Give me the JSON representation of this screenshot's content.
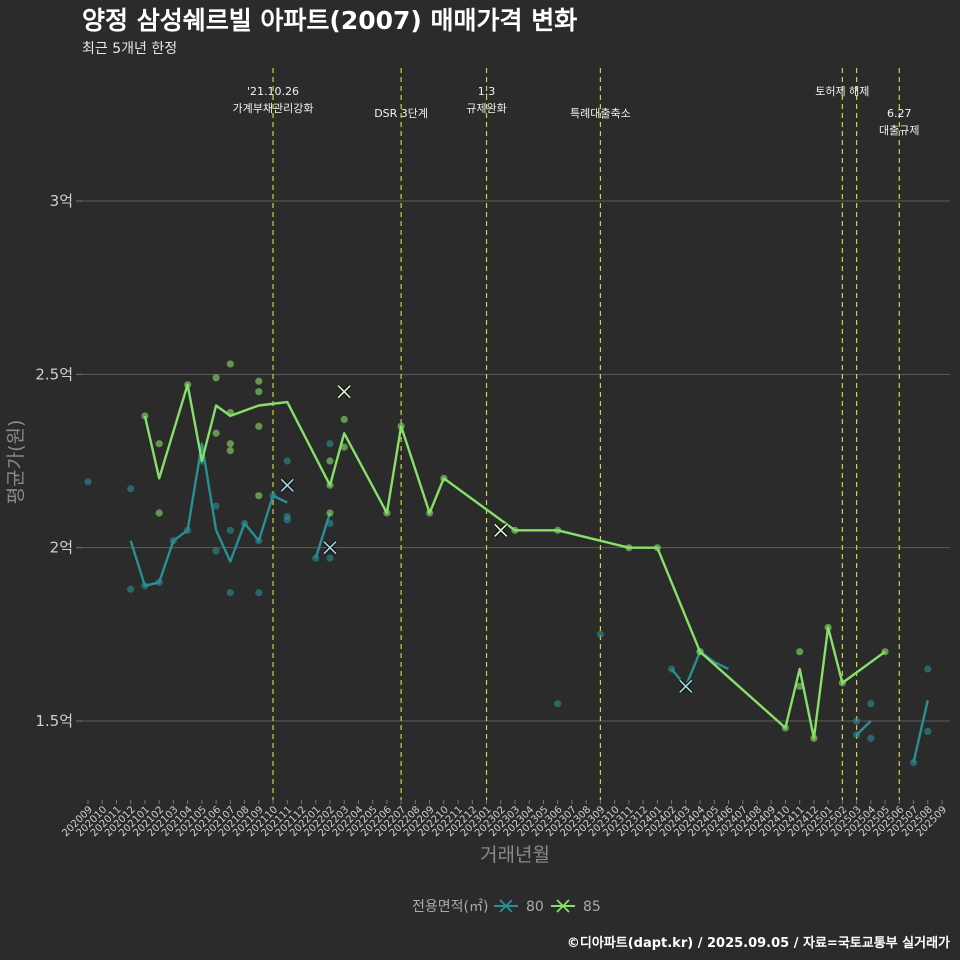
{
  "chart_data": {
    "type": "line",
    "title": "양정 삼성쉐르빌 아파트(2007) 매매가격 변화",
    "subtitle": "최근 5개년 한정",
    "xlabel": "거래년월",
    "ylabel": "평균가(원)",
    "caption": "©디아파트(dapt.kr) / 2025.09.05 / 자료=국토교통부 실거래가",
    "ylim": [
      1.3,
      3.45
    ],
    "yticks": [
      {
        "value": 1.5,
        "label": "1.5억"
      },
      {
        "value": 2.0,
        "label": "2억"
      },
      {
        "value": 2.5,
        "label": "2.5억"
      },
      {
        "value": 3.0,
        "label": "3억"
      }
    ],
    "grid": true,
    "legend_position": "bottom",
    "legend_title": "전용면적(㎡)",
    "categories": [
      "202009",
      "202010",
      "202011",
      "202012",
      "202101",
      "202102",
      "202103",
      "202104",
      "202105",
      "202106",
      "202107",
      "202108",
      "202109",
      "202110",
      "202111",
      "202112",
      "202201",
      "202202",
      "202203",
      "202204",
      "202205",
      "202206",
      "202207",
      "202208",
      "202209",
      "202210",
      "202211",
      "202212",
      "202301",
      "202302",
      "202303",
      "202304",
      "202305",
      "202306",
      "202307",
      "202308",
      "202309",
      "202310",
      "202311",
      "202312",
      "202401",
      "202402",
      "202403",
      "202404",
      "202405",
      "202406",
      "202407",
      "202408",
      "202409",
      "202410",
      "202411",
      "202412",
      "202501",
      "202502",
      "202503",
      "202504",
      "202505",
      "202506",
      "202507",
      "202508",
      "202509"
    ],
    "series": [
      {
        "name": "80",
        "color": "#2a8f94",
        "line": [
          [
            "202012",
            2.02
          ],
          [
            "202101",
            1.89
          ],
          [
            "202102",
            1.9
          ],
          [
            "202103",
            2.02
          ],
          [
            "202104",
            2.05
          ],
          [
            "202105",
            2.3
          ],
          [
            "202106",
            2.05
          ],
          [
            "202107",
            1.96
          ],
          [
            "202108",
            2.07
          ],
          [
            "202109",
            2.02
          ],
          [
            "202110",
            2.15
          ],
          [
            "202111",
            2.13
          ],
          null,
          [
            "202201",
            1.97
          ],
          [
            "202202",
            2.1
          ],
          null,
          [
            "202402",
            1.65
          ],
          [
            "202403",
            1.6
          ],
          [
            "202404",
            1.7
          ],
          [
            "202405",
            1.67
          ],
          [
            "202406",
            1.65
          ],
          null,
          [
            "202503",
            1.46
          ],
          [
            "202504",
            1.5
          ],
          null,
          [
            "202507",
            1.38
          ],
          [
            "202508",
            1.56
          ]
        ],
        "points": [
          [
            "202009",
            2.19
          ],
          [
            "202012",
            2.17
          ],
          [
            "202012",
            1.88
          ],
          [
            "202101",
            1.89
          ],
          [
            "202102",
            1.9
          ],
          [
            "202103",
            2.02
          ],
          [
            "202104",
            2.05
          ],
          [
            "202105",
            2.25
          ],
          [
            "202106",
            2.12
          ],
          [
            "202106",
            1.99
          ],
          [
            "202107",
            2.05
          ],
          [
            "202107",
            1.87
          ],
          [
            "202108",
            2.07
          ],
          [
            "202109",
            2.02
          ],
          [
            "202109",
            1.87
          ],
          [
            "202110",
            2.15
          ],
          [
            "202111",
            2.25
          ],
          [
            "202111",
            2.09
          ],
          [
            "202111",
            2.08
          ],
          [
            "202201",
            1.97
          ],
          [
            "202202",
            2.3
          ],
          [
            "202202",
            2.07
          ],
          [
            "202202",
            1.97
          ],
          [
            "202306",
            1.55
          ],
          [
            "202309",
            1.75
          ],
          [
            "202402",
            1.65
          ],
          [
            "202404",
            1.7
          ],
          [
            "202503",
            1.5
          ],
          [
            "202503",
            1.46
          ],
          [
            "202504",
            1.55
          ],
          [
            "202504",
            1.45
          ],
          [
            "202507",
            1.38
          ],
          [
            "202508",
            1.65
          ],
          [
            "202508",
            1.47
          ]
        ],
        "crosses": [
          [
            "202111",
            2.18
          ],
          [
            "202202",
            2.0
          ],
          [
            "202403",
            1.6
          ]
        ]
      },
      {
        "name": "85",
        "color": "#86e06a",
        "line": [
          [
            "202101",
            2.38
          ],
          [
            "202102",
            2.2
          ],
          [
            "202104",
            2.47
          ],
          [
            "202105",
            2.25
          ],
          [
            "202106",
            2.41
          ],
          [
            "202107",
            2.38
          ],
          [
            "202109",
            2.41
          ],
          [
            "202111",
            2.42
          ],
          [
            "202202",
            2.18
          ],
          [
            "202203",
            2.33
          ],
          [
            "202206",
            2.1
          ],
          [
            "202207",
            2.35
          ],
          [
            "202209",
            2.1
          ],
          [
            "202210",
            2.2
          ],
          [
            "202303",
            2.05
          ],
          [
            "202306",
            2.05
          ],
          [
            "202311",
            2.0
          ],
          [
            "202401",
            2.0
          ],
          [
            "202404",
            1.7
          ],
          [
            "202410",
            1.48
          ],
          [
            "202411",
            1.65
          ],
          [
            "202412",
            1.45
          ],
          [
            "202501",
            1.77
          ],
          [
            "202502",
            1.61
          ],
          [
            "202505",
            1.7
          ]
        ],
        "points": [
          [
            "202101",
            2.38
          ],
          [
            "202102",
            2.3
          ],
          [
            "202102",
            2.1
          ],
          [
            "202104",
            2.47
          ],
          [
            "202106",
            2.49
          ],
          [
            "202106",
            2.33
          ],
          [
            "202107",
            2.53
          ],
          [
            "202107",
            2.39
          ],
          [
            "202107",
            2.3
          ],
          [
            "202107",
            2.28
          ],
          [
            "202109",
            2.48
          ],
          [
            "202109",
            2.45
          ],
          [
            "202109",
            2.35
          ],
          [
            "202109",
            2.15
          ],
          [
            "202202",
            2.25
          ],
          [
            "202202",
            2.18
          ],
          [
            "202202",
            2.1
          ],
          [
            "202203",
            2.37
          ],
          [
            "202203",
            2.29
          ],
          [
            "202206",
            2.1
          ],
          [
            "202207",
            2.35
          ],
          [
            "202209",
            2.1
          ],
          [
            "202210",
            2.2
          ],
          [
            "202303",
            2.05
          ],
          [
            "202306",
            2.05
          ],
          [
            "202311",
            2.0
          ],
          [
            "202401",
            2.0
          ],
          [
            "202404",
            1.7
          ],
          [
            "202410",
            1.48
          ],
          [
            "202411",
            1.7
          ],
          [
            "202411",
            1.6
          ],
          [
            "202412",
            1.45
          ],
          [
            "202501",
            1.77
          ],
          [
            "202502",
            1.61
          ],
          [
            "202505",
            1.7
          ]
        ],
        "crosses": [
          [
            "202203",
            2.45
          ],
          [
            "202302",
            2.05
          ]
        ]
      }
    ],
    "events": [
      {
        "x": "202110",
        "lines": [
          "'21.10.26",
          "가계부채관리강화"
        ],
        "top": true
      },
      {
        "x": "202207",
        "lines": [
          "DSR 3단계"
        ],
        "top": false
      },
      {
        "x": "202301",
        "lines": [
          "1.3",
          "규제완화"
        ],
        "top": true
      },
      {
        "x": "202309",
        "lines": [
          "특례대출축소"
        ],
        "top": false
      },
      {
        "x": "202502",
        "lines": [
          "토허제 해제"
        ],
        "top": true
      },
      {
        "x": "202503",
        "lines": [],
        "top": true
      },
      {
        "x": "202506",
        "lines": [
          "6.27",
          "대출규제"
        ],
        "top": false
      }
    ]
  }
}
